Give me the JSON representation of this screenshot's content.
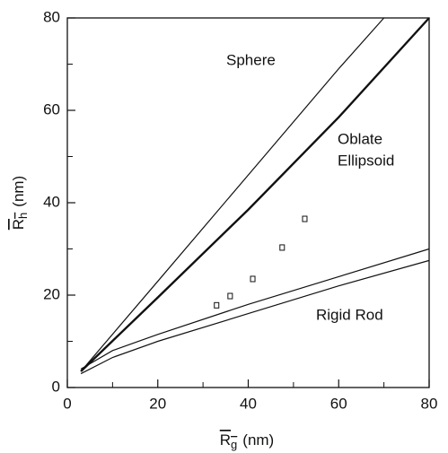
{
  "chart_data": {
    "type": "line",
    "x_label": {
      "main": "R",
      "sub": "g",
      "unit": "(nm)"
    },
    "y_label": {
      "main": "R",
      "sub": "h",
      "unit": "(nm)"
    },
    "xlim": [
      0,
      80
    ],
    "xticks": [
      0,
      20,
      40,
      60,
      80
    ],
    "xminor": [
      10,
      30,
      50,
      70
    ],
    "ylim": [
      0,
      80
    ],
    "yticks": [
      0,
      20,
      40,
      60,
      80
    ],
    "yminor": [
      10,
      30,
      50,
      70
    ],
    "series": [
      {
        "kind": "line",
        "color": "#111",
        "width": 1.2,
        "x": [
          3,
          20,
          40,
          60,
          70
        ],
        "values": [
          3.5,
          23,
          46,
          69,
          80
        ]
      },
      {
        "kind": "line",
        "color": "#111",
        "width": 2.4,
        "x": [
          3,
          20,
          40,
          60,
          80
        ],
        "values": [
          3.5,
          19.5,
          38.5,
          58.5,
          80
        ]
      },
      {
        "kind": "line",
        "color": "#111",
        "width": 1.2,
        "x": [
          3,
          10,
          20,
          40,
          60,
          80
        ],
        "values": [
          4,
          8,
          11.5,
          18,
          24,
          30
        ]
      },
      {
        "kind": "line",
        "color": "#111",
        "width": 1.2,
        "x": [
          3,
          10,
          20,
          40,
          60,
          80
        ],
        "values": [
          3,
          6.5,
          10,
          16,
          22,
          27.5
        ]
      },
      {
        "kind": "scatter",
        "color": "#111",
        "x": [
          33,
          36,
          41,
          47.5,
          52.5
        ],
        "values": [
          17.8,
          19.8,
          23.5,
          30.3,
          36.5
        ]
      }
    ],
    "annotations": [
      [
        "Sphere"
      ],
      [
        "Oblate",
        "Ellipsoid"
      ],
      [
        "Rigid Rod"
      ]
    ]
  }
}
